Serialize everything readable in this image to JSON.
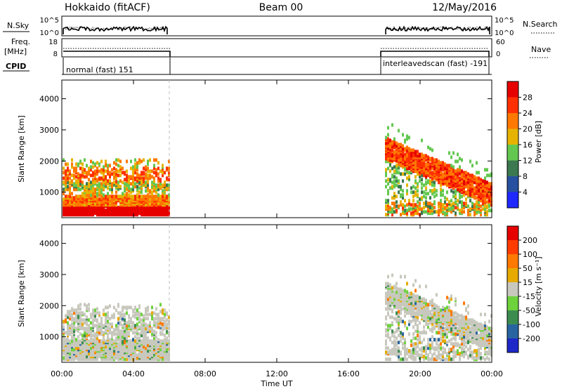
{
  "header": {
    "radar": "Hokkaido (fitACF)",
    "beam": "Beam 00",
    "date": "12/May/2016"
  },
  "strips": {
    "nsky_label": "N.Sky",
    "nsearch_label": "N.Search",
    "nsky_ticks": [
      "10^5",
      "10^0"
    ],
    "nsearch_ticks": [
      "10^5",
      "10^0"
    ],
    "freq_label_1": "Freq.",
    "freq_label_2": "[MHz]",
    "freq_ticks": [
      "18",
      "8"
    ],
    "nave_label": "Nave",
    "nave_ticks": [
      "60",
      "0"
    ],
    "cpid_label": "CPID",
    "cpid_segments": [
      {
        "label": "normal (fast) 151",
        "start_h": 0,
        "end_h": 6
      },
      {
        "label": "interleavedscan (fast) -191",
        "start_h": 18,
        "end_h": 24
      }
    ]
  },
  "chart_data": [
    {
      "type": "heatmap",
      "name": "power",
      "ylabel": "Slant Range [km]",
      "xlabel": "Time UT",
      "x_ticks": [
        "00:00",
        "04:00",
        "08:00",
        "12:00",
        "16:00",
        "20:00",
        "00:00"
      ],
      "xlim_hours": [
        0,
        24
      ],
      "ylim_km": [
        180,
        4600
      ],
      "y_ticks": [
        1000,
        2000,
        3000,
        4000
      ],
      "colorbar_label": "Power [dB]",
      "colorbar_ticks": [
        "4",
        "8",
        "12",
        "16",
        "20",
        "24",
        "28"
      ],
      "colorbar_colors": [
        "#1e28ff",
        "#2850a0",
        "#3c7850",
        "#64c850",
        "#e6b400",
        "#ff7800",
        "#ff3000",
        "#e60000"
      ],
      "data_periods_h": [
        [
          0,
          6
        ],
        [
          18,
          24
        ]
      ]
    },
    {
      "type": "heatmap",
      "name": "velocity",
      "ylabel": "Slant Range [km]",
      "xlabel": "Time UT",
      "x_ticks": [
        "00:00",
        "04:00",
        "08:00",
        "12:00",
        "16:00",
        "20:00",
        "00:00"
      ],
      "xlim_hours": [
        0,
        24
      ],
      "ylim_km": [
        180,
        4600
      ],
      "y_ticks": [
        1000,
        2000,
        3000,
        4000
      ],
      "colorbar_label": "Velocity [m s⁻¹]",
      "colorbar_ticks": [
        "200",
        "100",
        "50",
        "15",
        "-15",
        "-50",
        "-100",
        "-200"
      ],
      "colorbar_colors": [
        "#1e28c8",
        "#2864a0",
        "#3c8c50",
        "#6ed23c",
        "#c8c8be",
        "#e6aa00",
        "#ff7800",
        "#ff3c00",
        "#e60000"
      ],
      "data_periods_h": [
        [
          0,
          6
        ],
        [
          18,
          24
        ]
      ]
    }
  ]
}
